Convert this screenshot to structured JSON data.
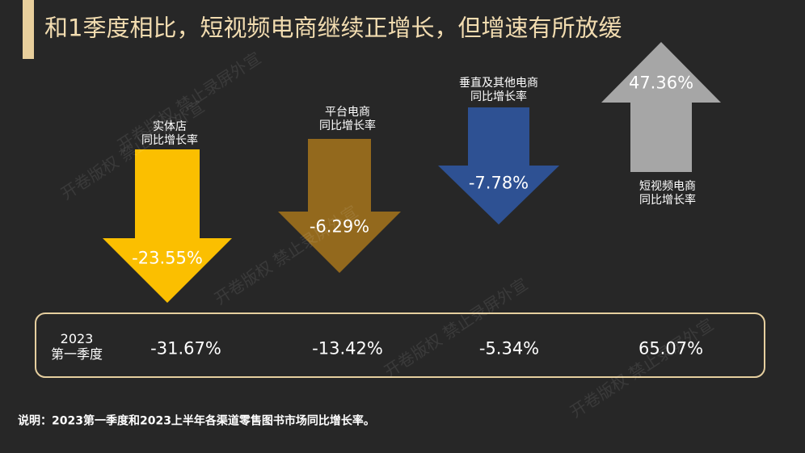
{
  "chart_data": {
    "type": "arrow",
    "title": "和1季度相比，短视频电商继续正增长，但增速有所放缓",
    "categories": [
      "实体店\n同比增长率",
      "平台电商\n同比增长率",
      "垂直及其他电商\n同比增长率",
      "短视频电商\n同比增长率"
    ],
    "values": [
      -23.55,
      -6.29,
      -7.78,
      47.36
    ],
    "value_labels": [
      "-23.55%",
      "-6.29%",
      "-7.78%",
      "47.36%"
    ],
    "colors": [
      "#fbbf00",
      "#93691d",
      "#2e5193",
      "#a6a6a6"
    ],
    "comparison": {
      "label": "2023\n第一季度",
      "values": [
        -31.67,
        -13.42,
        -5.34,
        65.07
      ],
      "value_labels": [
        "-31.67%",
        "-13.42%",
        "-5.34%",
        "65.07%"
      ]
    },
    "note": "说明：2023第一季度和2023上半年各渠道零售图书市场同比增长率。",
    "watermark": "开卷版权 禁止录屏外宣"
  }
}
